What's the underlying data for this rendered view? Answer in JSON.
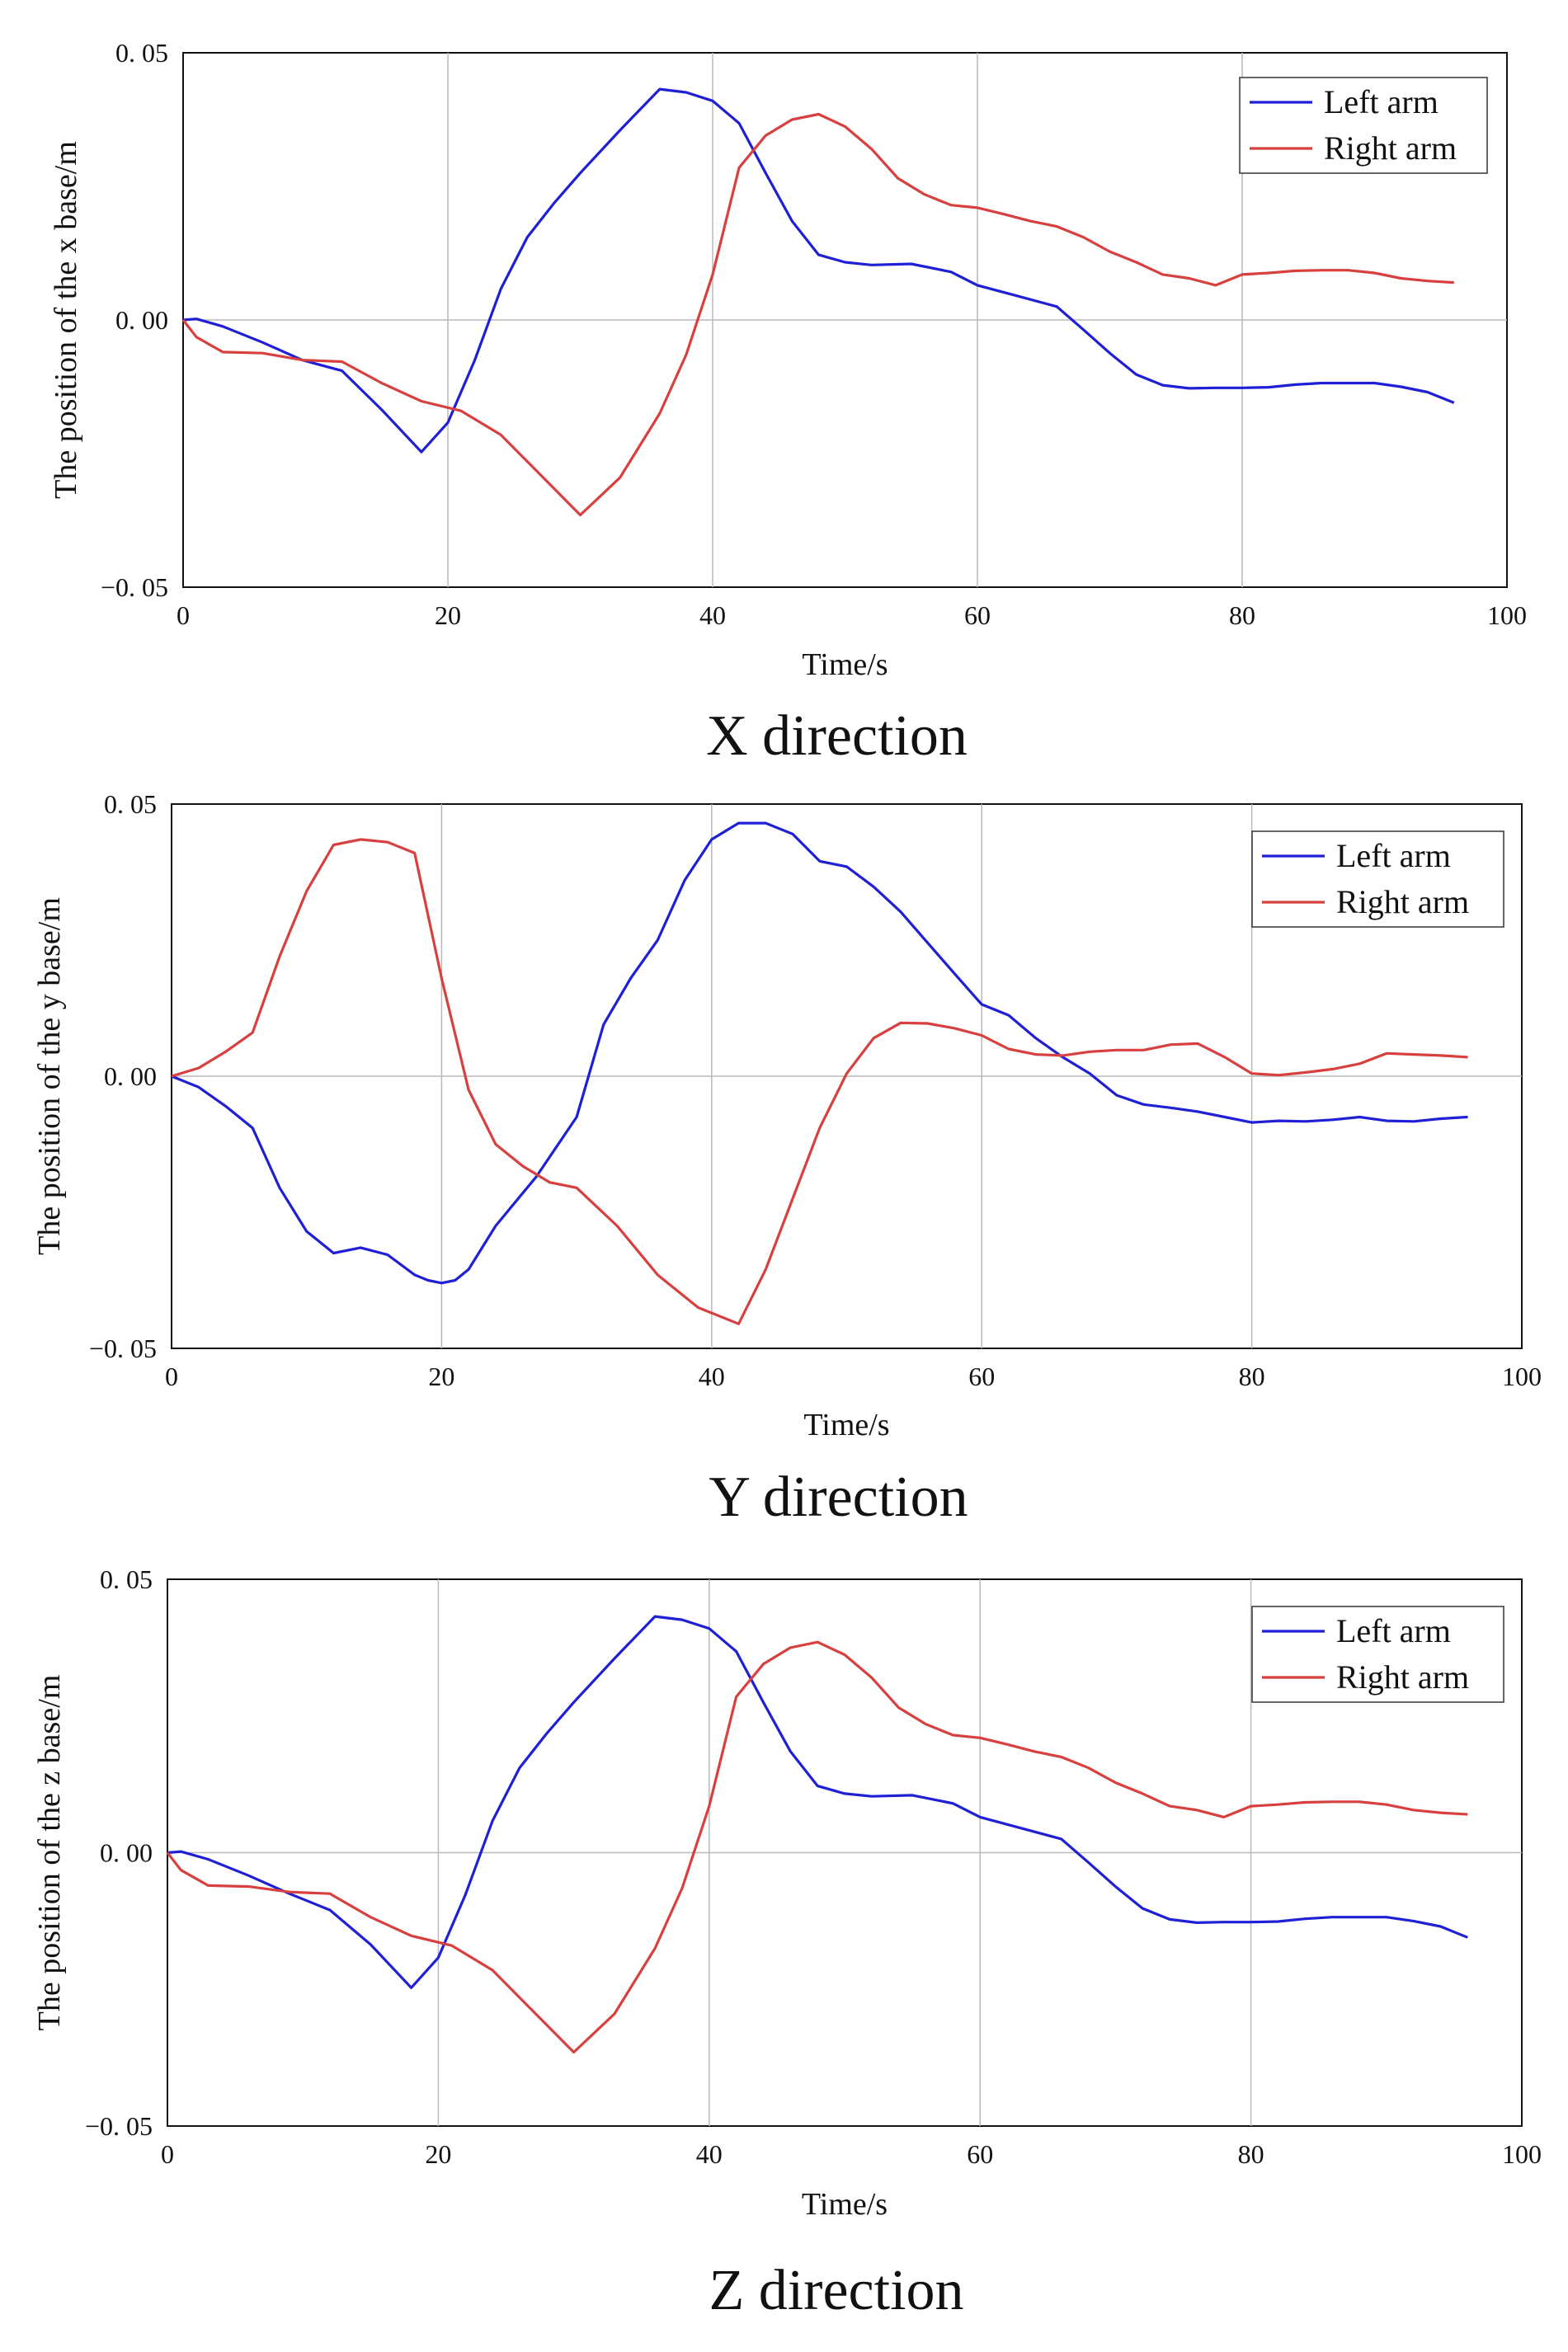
{
  "chart_data": [
    {
      "type": "line",
      "title": "",
      "caption": "X direction",
      "xlabel": "Time/s",
      "ylabel": "The position of the x base/m",
      "xlim": [
        0,
        100
      ],
      "ylim": [
        -0.05,
        0.05
      ],
      "xticks": [
        0,
        20,
        40,
        60,
        80,
        100
      ],
      "yticks": [
        -0.05,
        0.0,
        0.05
      ],
      "xtick_labels": [
        "0",
        "20",
        "40",
        "60",
        "80",
        "100"
      ],
      "ytick_labels": [
        "−0. 05",
        "0. 00",
        "0. 05"
      ],
      "grid": true,
      "legend": "top-right",
      "series": [
        {
          "name": "Left arm",
          "color": "#1f1fd6",
          "x": [
            0,
            1,
            3,
            6,
            9,
            12,
            15,
            18,
            20,
            22,
            24,
            26,
            28,
            30,
            33,
            36,
            38,
            40,
            42,
            44,
            46,
            48,
            50,
            52,
            55,
            58,
            60,
            63,
            66,
            68,
            70,
            72,
            74,
            76,
            78,
            80,
            82,
            84,
            86,
            88,
            90,
            92,
            94,
            96
          ],
          "y": [
            0,
            0.0002,
            -0.0012,
            -0.0042,
            -0.0075,
            -0.0095,
            -0.0168,
            -0.0247,
            -0.0192,
            -0.0077,
            0.0058,
            0.0155,
            0.0218,
            0.0275,
            0.0355,
            0.0432,
            0.0426,
            0.041,
            0.0368,
            0.0275,
            0.0185,
            0.0122,
            0.0108,
            0.0103,
            0.0105,
            0.009,
            0.0065,
            0.0045,
            0.0025,
            -0.0018,
            -0.0062,
            -0.0102,
            -0.0122,
            -0.0128,
            -0.0127,
            -0.0127,
            -0.0126,
            -0.0121,
            -0.0118,
            -0.0118,
            -0.0118,
            -0.0125,
            -0.0135,
            -0.0155
          ]
        },
        {
          "name": "Right arm",
          "color": "#d84040",
          "x": [
            0,
            1,
            3,
            6,
            9,
            12,
            15,
            18,
            21,
            24,
            27,
            30,
            33,
            36,
            38,
            40,
            42,
            44,
            46,
            48,
            50,
            52,
            54,
            56,
            58,
            60,
            62,
            64,
            66,
            68,
            70,
            72,
            74,
            76,
            78,
            80,
            82,
            84,
            86,
            88,
            90,
            92,
            94,
            96
          ],
          "y": [
            0,
            -0.0032,
            -0.006,
            -0.0062,
            -0.0075,
            -0.0078,
            -0.0118,
            -0.0152,
            -0.017,
            -0.0215,
            -0.029,
            -0.0365,
            -0.0295,
            -0.0175,
            -0.0065,
            0.0085,
            0.0285,
            0.0345,
            0.0375,
            0.0385,
            0.0362,
            0.032,
            0.0265,
            0.0235,
            0.0215,
            0.021,
            0.0198,
            0.0185,
            0.0175,
            0.0155,
            0.0128,
            0.0108,
            0.0085,
            0.0078,
            0.0065,
            0.0085,
            0.0088,
            0.0092,
            0.0093,
            0.0093,
            0.0088,
            0.0078,
            0.0073,
            0.007
          ]
        }
      ]
    },
    {
      "type": "line",
      "title": "",
      "caption": "Y direction",
      "xlabel": "Time/s",
      "ylabel": "The position of the y base/m",
      "xlim": [
        0,
        100
      ],
      "ylim": [
        -0.05,
        0.05
      ],
      "xticks": [
        0,
        20,
        40,
        60,
        80,
        100
      ],
      "yticks": [
        -0.05,
        0.0,
        0.05
      ],
      "xtick_labels": [
        "0",
        "20",
        "40",
        "60",
        "80",
        "100"
      ],
      "ytick_labels": [
        "−0. 05",
        "0. 00",
        "0. 05"
      ],
      "grid": true,
      "legend": "top-right",
      "series": [
        {
          "name": "Left arm",
          "color": "#1f1fd6",
          "x": [
            0,
            2,
            4,
            6,
            8,
            10,
            12,
            14,
            16,
            18,
            19,
            20,
            21,
            22,
            24,
            27,
            30,
            32,
            34,
            36,
            38,
            40,
            42,
            44,
            46,
            48,
            50,
            52,
            54,
            56,
            58,
            60,
            62,
            64,
            66,
            68,
            70,
            72,
            74,
            76,
            78,
            80,
            82,
            84,
            86,
            88,
            90,
            92,
            94,
            96
          ],
          "y": [
            0,
            -0.002,
            -0.0055,
            -0.0095,
            -0.0205,
            -0.0285,
            -0.0325,
            -0.0315,
            -0.0328,
            -0.0365,
            -0.0375,
            -0.038,
            -0.0375,
            -0.0355,
            -0.0275,
            -0.0185,
            -0.0075,
            0.0095,
            0.018,
            0.025,
            0.036,
            0.0435,
            0.0465,
            0.0465,
            0.0445,
            0.0395,
            0.0385,
            0.0348,
            0.0302,
            0.0245,
            0.0188,
            0.0132,
            0.0112,
            0.007,
            0.0035,
            0.0005,
            -0.0035,
            -0.0052,
            -0.0058,
            -0.0065,
            -0.0075,
            -0.0085,
            -0.0082,
            -0.0083,
            -0.008,
            -0.0075,
            -0.0082,
            -0.0083,
            -0.0078,
            -0.0075
          ]
        },
        {
          "name": "Right arm",
          "color": "#d84040",
          "x": [
            0,
            2,
            4,
            6,
            8,
            10,
            12,
            14,
            16,
            18,
            20,
            22,
            24,
            26,
            28,
            30,
            33,
            36,
            39,
            42,
            44,
            46,
            48,
            50,
            52,
            54,
            56,
            58,
            60,
            62,
            64,
            66,
            68,
            70,
            72,
            74,
            76,
            78,
            80,
            82,
            84,
            86,
            88,
            90,
            92,
            94,
            96
          ],
          "y": [
            0,
            0.0015,
            0.0045,
            0.008,
            0.022,
            0.034,
            0.0425,
            0.0435,
            0.043,
            0.041,
            0.018,
            -0.0025,
            -0.0125,
            -0.0165,
            -0.0195,
            -0.0205,
            -0.0275,
            -0.0365,
            -0.0425,
            -0.0455,
            -0.0355,
            -0.0225,
            -0.0095,
            0.0005,
            0.007,
            0.0098,
            0.0097,
            0.0088,
            0.0075,
            0.005,
            0.004,
            0.0038,
            0.0045,
            0.0048,
            0.0048,
            0.0058,
            0.006,
            0.0035,
            0.0005,
            0.0002,
            0.0007,
            0.0013,
            0.0023,
            0.0042,
            0.004,
            0.0038,
            0.0035
          ]
        }
      ]
    },
    {
      "type": "line",
      "title": "",
      "caption": "Z direction",
      "xlabel": "Time/s",
      "ylabel": "The position of the z base/m",
      "xlim": [
        0,
        100
      ],
      "ylim": [
        -0.05,
        0.05
      ],
      "xticks": [
        0,
        20,
        40,
        60,
        80,
        100
      ],
      "yticks": [
        -0.05,
        0.0,
        0.05
      ],
      "xtick_labels": [
        "0",
        "20",
        "40",
        "60",
        "80",
        "100"
      ],
      "ytick_labels": [
        "−0. 05",
        "0. 00",
        "0. 05"
      ],
      "grid": true,
      "legend": "top-right",
      "series": [
        {
          "name": "Left arm",
          "color": "#1f1fd6",
          "x": [
            0,
            1,
            3,
            6,
            9,
            12,
            15,
            18,
            20,
            22,
            24,
            26,
            28,
            30,
            33,
            36,
            38,
            40,
            42,
            44,
            46,
            48,
            50,
            52,
            55,
            58,
            60,
            63,
            66,
            68,
            70,
            72,
            74,
            76,
            78,
            80,
            82,
            84,
            86,
            88,
            90,
            92,
            94,
            96
          ],
          "y": [
            0,
            0.0002,
            -0.0012,
            -0.0042,
            -0.0075,
            -0.0105,
            -0.0168,
            -0.0247,
            -0.0192,
            -0.0077,
            0.0058,
            0.0155,
            0.0218,
            0.0275,
            0.0355,
            0.0432,
            0.0426,
            0.041,
            0.0368,
            0.0275,
            0.0185,
            0.0122,
            0.0108,
            0.0103,
            0.0105,
            0.009,
            0.0065,
            0.0045,
            0.0025,
            -0.0018,
            -0.0062,
            -0.0102,
            -0.0122,
            -0.0128,
            -0.0127,
            -0.0127,
            -0.0126,
            -0.0121,
            -0.0118,
            -0.0118,
            -0.0118,
            -0.0125,
            -0.0135,
            -0.0155
          ]
        },
        {
          "name": "Right arm",
          "color": "#d84040",
          "x": [
            0,
            1,
            3,
            6,
            9,
            12,
            15,
            18,
            21,
            24,
            27,
            30,
            33,
            36,
            38,
            40,
            42,
            44,
            46,
            48,
            50,
            52,
            54,
            56,
            58,
            60,
            62,
            64,
            66,
            68,
            70,
            72,
            74,
            76,
            78,
            80,
            82,
            84,
            86,
            88,
            90,
            92,
            94,
            96
          ],
          "y": [
            0,
            -0.0032,
            -0.006,
            -0.0062,
            -0.0072,
            -0.0075,
            -0.0118,
            -0.0152,
            -0.017,
            -0.0215,
            -0.029,
            -0.0365,
            -0.0295,
            -0.0175,
            -0.0065,
            0.0085,
            0.0285,
            0.0345,
            0.0375,
            0.0385,
            0.0362,
            0.032,
            0.0265,
            0.0235,
            0.0215,
            0.021,
            0.0198,
            0.0185,
            0.0175,
            0.0155,
            0.0128,
            0.0108,
            0.0085,
            0.0078,
            0.0065,
            0.0085,
            0.0088,
            0.0092,
            0.0093,
            0.0093,
            0.0088,
            0.0078,
            0.0073,
            0.007
          ]
        }
      ]
    }
  ]
}
